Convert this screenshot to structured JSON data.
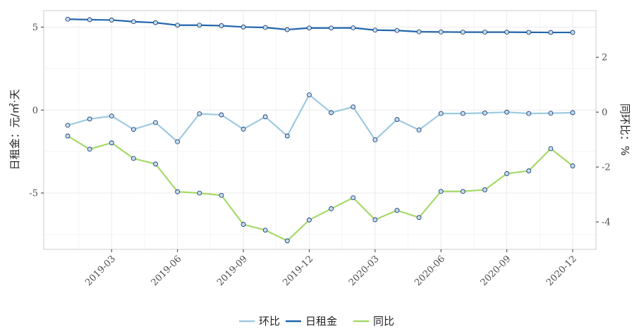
{
  "chart_data": {
    "type": "line",
    "y_left_label": "日租金：元/㎡·天",
    "y_right_label": "同环比：%",
    "x_tick_labels": [
      "2019-03",
      "2019-06",
      "2019-09",
      "2019-12",
      "2020-03",
      "2020-06",
      "2020-09",
      "2020-12"
    ],
    "x_tick_indices": [
      2,
      5,
      8,
      11,
      14,
      17,
      20,
      23
    ],
    "y_left_ticks": [
      -5,
      0,
      5
    ],
    "y_right_ticks": [
      -4,
      -2,
      0,
      2
    ],
    "y_left_range": [
      -8.4,
      6.0
    ],
    "y_right_range": [
      -5.0,
      3.7
    ],
    "grid": true,
    "legend_position": "bottom",
    "n_points": 24,
    "series": [
      {
        "name": "环比",
        "axis": "right",
        "color": "#9ecae1",
        "values": [
          -0.48,
          -0.25,
          -0.14,
          -0.63,
          -0.38,
          -1.08,
          -0.06,
          -0.1,
          -0.62,
          -0.17,
          -0.87,
          0.63,
          -0.02,
          0.19,
          -1.01,
          -0.27,
          -0.65,
          -0.05,
          -0.05,
          -0.03,
          0.0,
          -0.05,
          -0.04,
          -0.02
        ]
      },
      {
        "name": "日租金",
        "axis": "left",
        "color": "#2166ac",
        "values": [
          5.48,
          5.45,
          5.43,
          5.33,
          5.27,
          5.12,
          5.12,
          5.09,
          5.01,
          4.98,
          4.85,
          4.95,
          4.95,
          4.96,
          4.82,
          4.8,
          4.72,
          4.71,
          4.7,
          4.7,
          4.7,
          4.69,
          4.68,
          4.68
        ]
      },
      {
        "name": "同比",
        "axis": "right",
        "color": "#a6d96a",
        "values": [
          -0.87,
          -1.35,
          -1.12,
          -1.69,
          -1.89,
          -2.9,
          -2.95,
          -3.03,
          -4.09,
          -4.3,
          -4.69,
          -3.93,
          -3.52,
          -3.12,
          -3.92,
          -3.58,
          -3.84,
          -2.89,
          -2.89,
          -2.83,
          -2.24,
          -2.14,
          -1.33,
          -1.96
        ]
      }
    ]
  }
}
